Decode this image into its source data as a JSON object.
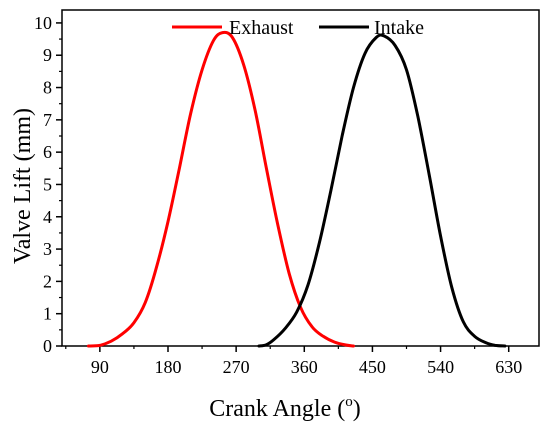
{
  "chart_data": {
    "type": "line",
    "title": "",
    "xlabel": "Crank Angle (",
    "xlabel_unit": "o",
    "xlabel_close": ")",
    "ylabel": "Valve Lift (mm)",
    "xlim": [
      40,
      670
    ],
    "ylim": [
      0,
      10.4
    ],
    "xticks": [
      90,
      180,
      270,
      360,
      450,
      540,
      630
    ],
    "yticks": [
      0,
      1,
      2,
      3,
      4,
      5,
      6,
      7,
      8,
      9,
      10
    ],
    "grid": false,
    "legend": "top-center",
    "series": [
      {
        "name": "Exhaust",
        "color": "#ff0000",
        "x": [
          75,
          90,
          105,
          120,
          135,
          150,
          165,
          180,
          195,
          210,
          225,
          240,
          252,
          265,
          280,
          295,
          310,
          325,
          340,
          355,
          370,
          385,
          400,
          415,
          425
        ],
        "y": [
          0,
          0.02,
          0.15,
          0.38,
          0.72,
          1.35,
          2.45,
          3.85,
          5.5,
          7.2,
          8.55,
          9.45,
          9.7,
          9.55,
          8.7,
          7.3,
          5.5,
          3.75,
          2.25,
          1.2,
          0.6,
          0.3,
          0.12,
          0.03,
          0
        ]
      },
      {
        "name": "Intake",
        "color": "#000000",
        "x": [
          300,
          310,
          320,
          335,
          350,
          365,
          380,
          395,
          410,
          425,
          440,
          455,
          465,
          480,
          495,
          510,
          525,
          540,
          555,
          570,
          585,
          600,
          612,
          625
        ],
        "y": [
          0,
          0.04,
          0.2,
          0.55,
          1.05,
          1.9,
          3.2,
          4.8,
          6.5,
          8.0,
          9.05,
          9.55,
          9.6,
          9.3,
          8.55,
          7.1,
          5.3,
          3.4,
          1.8,
          0.75,
          0.3,
          0.1,
          0.02,
          0
        ]
      }
    ]
  }
}
